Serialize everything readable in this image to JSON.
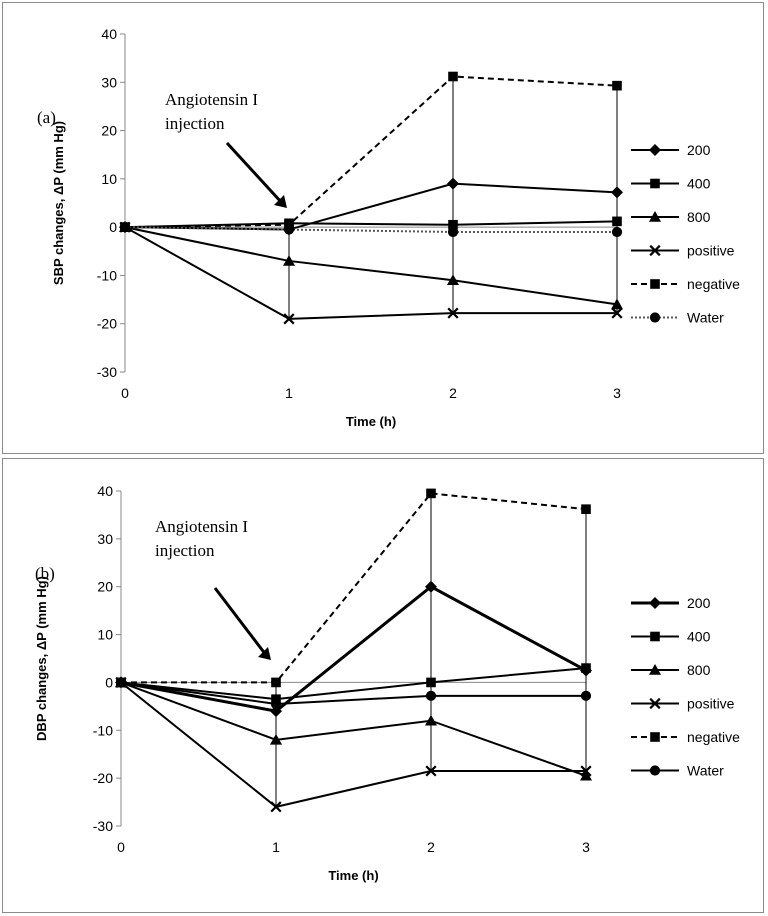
{
  "chart_data": [
    {
      "panel_label": "(a)",
      "type": "line",
      "xlabel": "Time (h)",
      "ylabel": "SBP changes, ΔP (mm Hg)",
      "ylim": [
        -30,
        40
      ],
      "yticks": [
        -30,
        -20,
        -10,
        0,
        10,
        20,
        30,
        40
      ],
      "xticks": [
        0,
        1,
        2,
        3
      ],
      "x": [
        0,
        1,
        2,
        3
      ],
      "annotation": [
        "Angiotensin I",
        "injection"
      ],
      "legend_position": "right",
      "series": [
        {
          "name": "200",
          "marker": "diamond",
          "dash": "solid",
          "values": [
            0,
            -0.5,
            9,
            7.2
          ]
        },
        {
          "name": "400",
          "marker": "square",
          "dash": "solid",
          "values": [
            0,
            0.8,
            0.5,
            1.2
          ]
        },
        {
          "name": "800",
          "marker": "triangle",
          "dash": "solid",
          "values": [
            0,
            -7,
            -11,
            -16
          ]
        },
        {
          "name": "positive",
          "marker": "x",
          "dash": "solid",
          "values": [
            0,
            -19,
            -17.8,
            -17.8
          ]
        },
        {
          "name": "negative",
          "marker": "square",
          "dash": "dashed",
          "values": [
            0,
            0.5,
            31.2,
            29.3
          ]
        },
        {
          "name": "Water",
          "marker": "circle",
          "dash": "dotted",
          "values": [
            0,
            -0.5,
            -1,
            -1
          ]
        }
      ]
    },
    {
      "panel_label": "(b)",
      "type": "line",
      "xlabel": "Time (h)",
      "ylabel": "DBP changes, ΔP (mm Hg)",
      "ylim": [
        -30,
        40
      ],
      "yticks": [
        -30,
        -20,
        -10,
        0,
        10,
        20,
        30,
        40
      ],
      "xticks": [
        0,
        1,
        2,
        3
      ],
      "x": [
        0,
        1,
        2,
        3
      ],
      "annotation": [
        "Angiotensin I",
        "injection"
      ],
      "legend_position": "right",
      "series": [
        {
          "name": "200",
          "marker": "diamond",
          "dash": "solid",
          "values": [
            0,
            -6,
            20,
            2.5
          ]
        },
        {
          "name": "400",
          "marker": "square",
          "dash": "solid",
          "values": [
            0,
            -3.5,
            0,
            3
          ]
        },
        {
          "name": "800",
          "marker": "triangle",
          "dash": "solid",
          "values": [
            0,
            -12,
            -8,
            -19.5
          ]
        },
        {
          "name": "positive",
          "marker": "x",
          "dash": "solid",
          "values": [
            0,
            -26,
            -18.5,
            -18.5
          ]
        },
        {
          "name": "negative",
          "marker": "square",
          "dash": "dashed",
          "values": [
            0,
            0,
            39.5,
            36.2
          ]
        },
        {
          "name": "Water",
          "marker": "circle",
          "dash": "solid",
          "values": [
            0,
            -4.5,
            -2.8,
            -2.8
          ]
        }
      ]
    }
  ]
}
